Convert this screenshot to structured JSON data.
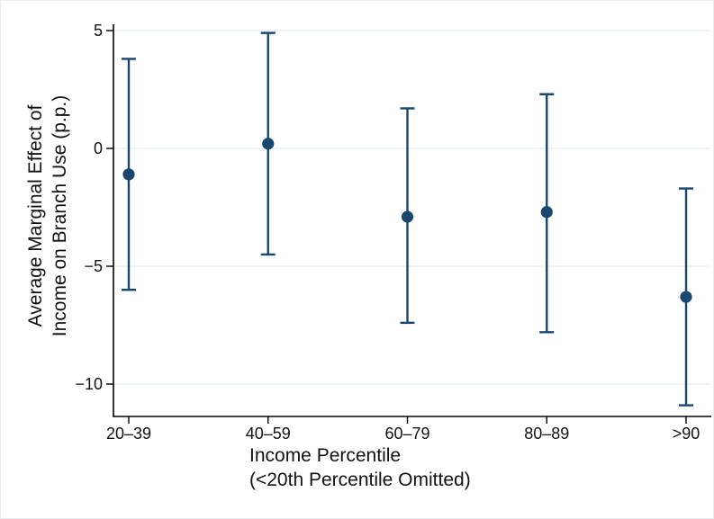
{
  "chart_data": {
    "type": "scatter",
    "subtype": "point-estimates-with-95ci-error-bars",
    "title": "",
    "xlabel": "Income Percentile (<20th Percentile Omitted)",
    "xlabel_line1": "Income Percentile",
    "xlabel_line2": "(<20th Percentile Omitted)",
    "ylabel": "Average Marginal Effect of Income on Branch Use (p.p.)",
    "ylabel_line1": "Average Marginal Effect of",
    "ylabel_line2": "Income on Branch Use (p.p.)",
    "categories": [
      "20–39",
      "40–59",
      "60–79",
      "80–89",
      ">90"
    ],
    "estimates": [
      -1.1,
      0.2,
      -2.9,
      -2.7,
      -6.3
    ],
    "ci_lower": [
      -6.0,
      -4.5,
      -7.4,
      -7.8,
      -10.9
    ],
    "ci_upper": [
      3.8,
      4.9,
      1.7,
      2.3,
      -1.7
    ],
    "yticks": [
      5,
      0,
      -5,
      -10
    ],
    "ytick_labels": [
      "5",
      "0",
      "−5",
      "−10"
    ],
    "ylim": [
      -11.4,
      5.3
    ],
    "grid": "horizontal",
    "legend": "none",
    "marker_color": "#1a476f",
    "gridline_color": "#e9eff5",
    "axis_color": "#000000",
    "text_color": "#111111",
    "background_color": "#ffffff"
  }
}
